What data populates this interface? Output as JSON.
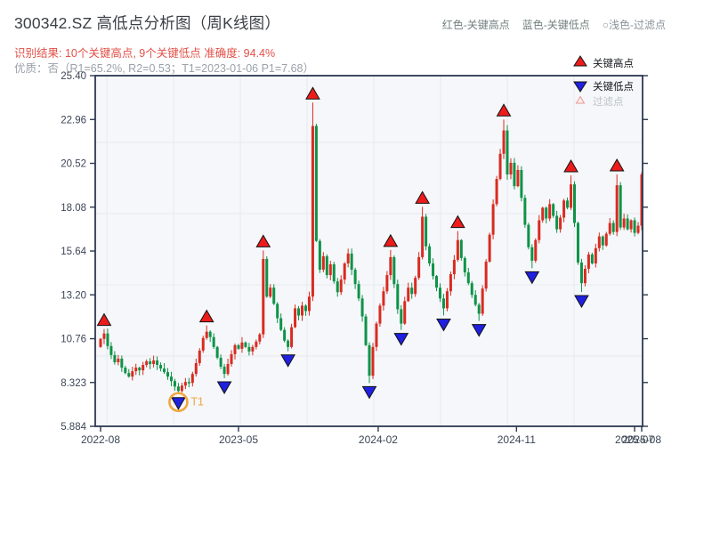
{
  "header": {
    "title": "300342.SZ 高低点分析图（周K线图）",
    "hint_high": "红色-关键高点",
    "hint_low": "蓝色-关键低点",
    "hint_filter": "○浅色-过滤点",
    "result_line": "识别结果: 10个关键高点, 9个关键低点  准确度: 94.4%",
    "quality_line": "优质：否（R1=65.2%, R2=0.53；T1=2023-01-06 P1=7.68）"
  },
  "legend": {
    "items": [
      {
        "id": "key-high",
        "label": "关键高点"
      },
      {
        "id": "key-low",
        "label": "关键低点"
      },
      {
        "id": "filtered",
        "label": "过滤点"
      }
    ]
  },
  "colors": {
    "bull": "#d92b21",
    "bear": "#0e9347",
    "marker_high": "#ee1b1b",
    "marker_low": "#2020e0",
    "marker_stroke": "#111111",
    "filter_fill": "#fdeeee",
    "filter_stroke": "#e89a94",
    "t1": "#f0a63e",
    "spine": "#2d3950",
    "grid": "#e6e8ee",
    "plot_bg": "#f5f7fa",
    "tick_label": "#3c4656",
    "legend_text": "#15181c",
    "legend_muted": "#bcc2c9"
  },
  "chart_data": {
    "type": "candlestick",
    "title": "300342.SZ 高低点分析图（周K线图）",
    "ylim": [
      5.884,
      25.4
    ],
    "y_ticks": [
      {
        "v": 5.884,
        "label": "5.884"
      },
      {
        "v": 8.323,
        "label": "8.323"
      },
      {
        "v": 10.76,
        "label": "10.76"
      },
      {
        "v": 13.2,
        "label": "13.20"
      },
      {
        "v": 15.64,
        "label": "15.64"
      },
      {
        "v": 18.08,
        "label": "18.08"
      },
      {
        "v": 20.52,
        "label": "20.52"
      },
      {
        "v": 22.96,
        "label": "22.96"
      },
      {
        "v": 25.4,
        "label": "25.40"
      }
    ],
    "x_ticks": [
      {
        "week": 0,
        "label": "2022-08"
      },
      {
        "week": 39,
        "label": "2023-05"
      },
      {
        "week": 78.5,
        "label": "2024-02"
      },
      {
        "week": 117.6,
        "label": "2024-11"
      },
      {
        "week": 151,
        "label": "2025-07"
      },
      {
        "week": 153,
        "label": "2025-08"
      }
    ],
    "first_open": 10.3,
    "closes": [
      10.75,
      11.05,
      10.35,
      9.85,
      9.45,
      9.65,
      9.15,
      8.85,
      8.65,
      8.95,
      9.15,
      9.0,
      9.3,
      9.5,
      9.35,
      9.55,
      9.3,
      9.1,
      8.9,
      8.65,
      8.4,
      8.1,
      7.85,
      8.15,
      8.35,
      8.3,
      8.8,
      9.4,
      10.1,
      10.8,
      11.15,
      10.85,
      10.3,
      9.7,
      9.2,
      8.8,
      9.35,
      9.9,
      10.4,
      10.2,
      10.55,
      10.3,
      10.05,
      10.3,
      10.6,
      11.0,
      15.2,
      13.1,
      13.6,
      12.7,
      11.9,
      11.25,
      10.65,
      10.3,
      11.4,
      12.45,
      12.05,
      12.6,
      12.3,
      13.1,
      22.6,
      16.2,
      14.6,
      15.35,
      14.3,
      14.9,
      13.95,
      13.35,
      14.05,
      14.95,
      15.5,
      14.6,
      13.8,
      13.0,
      12.0,
      10.4,
      8.7,
      10.3,
      11.6,
      12.6,
      13.4,
      14.3,
      15.3,
      13.8,
      12.4,
      11.6,
      12.85,
      13.6,
      13.25,
      14.15,
      15.3,
      17.55,
      15.9,
      14.95,
      14.25,
      13.6,
      13.0,
      12.45,
      13.4,
      14.35,
      15.15,
      16.25,
      15.25,
      14.45,
      13.85,
      13.2,
      12.65,
      12.15,
      13.55,
      15.05,
      16.55,
      18.25,
      19.65,
      21.05,
      22.35,
      19.9,
      20.55,
      19.25,
      20.15,
      18.6,
      17.1,
      15.85,
      15.1,
      16.25,
      17.35,
      18.05,
      17.45,
      18.25,
      17.6,
      16.85,
      17.5,
      18.45,
      18.05,
      19.35,
      17.2,
      15.0,
      13.85,
      14.65,
      15.45,
      14.95,
      15.8,
      16.45,
      15.95,
      16.6,
      17.2,
      16.7,
      19.3,
      16.95,
      17.45,
      16.85,
      17.35,
      16.65,
      17.05,
      19.9
    ],
    "key_highs": [
      {
        "week": 1,
        "price": 11.3
      },
      {
        "week": 30,
        "price": 11.5
      },
      {
        "week": 46,
        "price": 15.67
      },
      {
        "week": 60,
        "price": 23.9
      },
      {
        "week": 82,
        "price": 15.7
      },
      {
        "week": 91,
        "price": 18.1
      },
      {
        "week": 101,
        "price": 16.75
      },
      {
        "week": 114,
        "price": 22.96
      },
      {
        "week": 133,
        "price": 19.85
      },
      {
        "week": 146,
        "price": 19.9
      }
    ],
    "key_lows": [
      {
        "week": 22,
        "price": 7.68
      },
      {
        "week": 35,
        "price": 8.56
      },
      {
        "week": 53,
        "price": 10.06
      },
      {
        "week": 76,
        "price": 8.29
      },
      {
        "week": 85,
        "price": 11.25
      },
      {
        "week": 97,
        "price": 12.05
      },
      {
        "week": 107,
        "price": 11.75
      },
      {
        "week": 122,
        "price": 14.68
      },
      {
        "week": 136,
        "price": 13.36
      }
    ],
    "t1_annotation": {
      "week": 22,
      "price": 7.68,
      "label": "T1"
    }
  }
}
